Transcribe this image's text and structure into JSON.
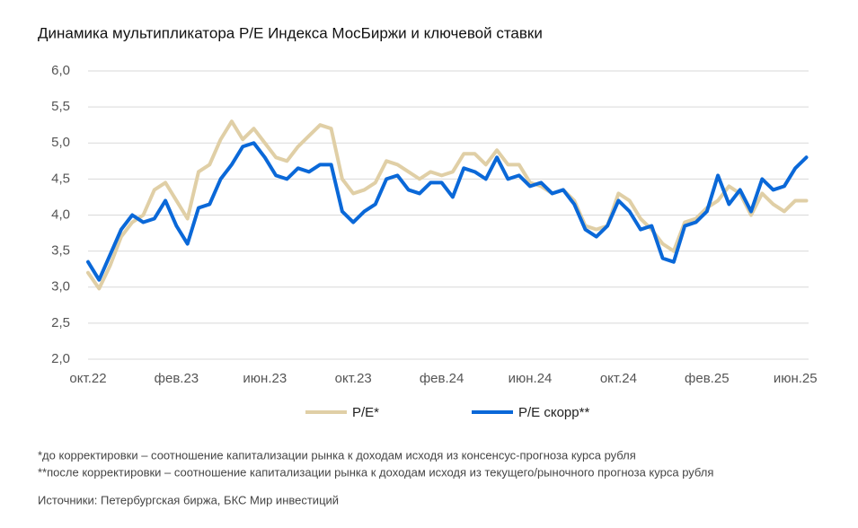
{
  "chart_data": {
    "type": "line",
    "title": "Динамика мультипликатора P/E Индекса МосБиржи и ключевой ставки",
    "categories": [
      "окт.22",
      null,
      null,
      null,
      null,
      null,
      null,
      null,
      "фев.23",
      null,
      null,
      null,
      null,
      null,
      null,
      null,
      "июн.23",
      null,
      null,
      null,
      null,
      null,
      null,
      null,
      "окт.23",
      null,
      null,
      null,
      null,
      null,
      null,
      null,
      "фев.24",
      null,
      null,
      null,
      null,
      null,
      null,
      null,
      "июн.24",
      null,
      null,
      null,
      null,
      null,
      null,
      null,
      "окт.24",
      null,
      null,
      null,
      null,
      null,
      null,
      null,
      "фев.25",
      null,
      null,
      null,
      null,
      null,
      null,
      null,
      "июн.25",
      null
    ],
    "series": [
      {
        "name": "P/E*",
        "color": "#e0cfa6",
        "values": [
          3.2,
          2.98,
          3.3,
          3.7,
          3.9,
          4.0,
          4.35,
          4.45,
          4.2,
          3.95,
          4.6,
          4.7,
          5.05,
          5.3,
          5.05,
          5.2,
          5.0,
          4.8,
          4.75,
          4.95,
          5.1,
          5.25,
          5.2,
          4.5,
          4.3,
          4.35,
          4.45,
          4.75,
          4.7,
          4.6,
          4.5,
          4.6,
          4.55,
          4.6,
          4.85,
          4.85,
          4.7,
          4.9,
          4.7,
          4.7,
          4.45,
          4.4,
          4.3,
          4.35,
          4.2,
          3.85,
          3.8,
          3.85,
          4.3,
          4.2,
          3.95,
          3.8,
          3.6,
          3.5,
          3.9,
          3.95,
          4.1,
          4.2,
          4.4,
          4.3,
          4.0,
          4.3,
          4.15,
          4.05,
          4.2,
          4.2
        ]
      },
      {
        "name": "P/E скорр**",
        "color": "#0a68d8",
        "values": [
          3.35,
          3.1,
          3.45,
          3.8,
          4.0,
          3.9,
          3.95,
          4.2,
          3.85,
          3.6,
          4.1,
          4.15,
          4.5,
          4.7,
          4.95,
          5.0,
          4.8,
          4.55,
          4.5,
          4.65,
          4.6,
          4.7,
          4.7,
          4.05,
          3.9,
          4.05,
          4.15,
          4.5,
          4.55,
          4.35,
          4.3,
          4.45,
          4.45,
          4.25,
          4.65,
          4.6,
          4.5,
          4.8,
          4.5,
          4.55,
          4.4,
          4.45,
          4.3,
          4.35,
          4.15,
          3.8,
          3.7,
          3.85,
          4.2,
          4.05,
          3.8,
          3.85,
          3.4,
          3.35,
          3.85,
          3.9,
          4.05,
          4.55,
          4.15,
          4.35,
          4.05,
          4.5,
          4.35,
          4.4,
          4.65,
          4.8
        ]
      }
    ],
    "ylim": [
      2.0,
      6.0
    ],
    "yticks": [
      {
        "value": 2.0,
        "label": "2,0"
      },
      {
        "value": 2.5,
        "label": "2,5"
      },
      {
        "value": 3.0,
        "label": "3,0"
      },
      {
        "value": 3.5,
        "label": "3,5"
      },
      {
        "value": 4.0,
        "label": "4,0"
      },
      {
        "value": 4.5,
        "label": "4,5"
      },
      {
        "value": 5.0,
        "label": "5,0"
      },
      {
        "value": 5.5,
        "label": "5,5"
      },
      {
        "value": 6.0,
        "label": "6,0"
      }
    ],
    "grid": true,
    "notes": [
      "*до корректировки – соотношение капитализации рынка к доходам исходя из консенсус-прогноза курса рубля",
      "**после корректировки – соотношение капитализации рынка к доходам исходя из текущего/рыночного прогноза курса рубля",
      "Источники: Петербургская биржа, БКС Мир инвестиций"
    ]
  }
}
